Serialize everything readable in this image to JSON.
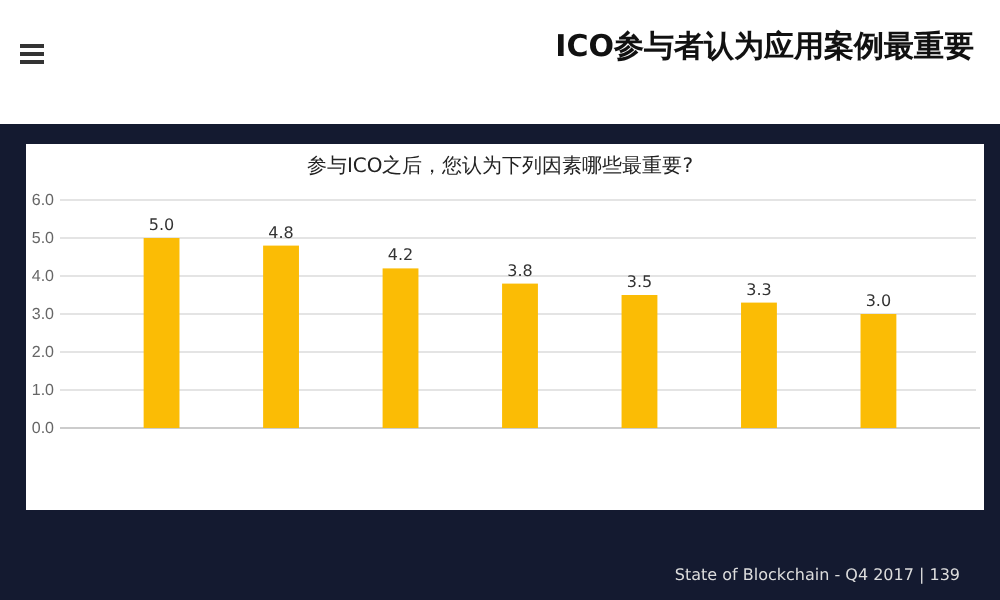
{
  "chart_data": {
    "type": "bar",
    "title": "参与ICO之后，您认为下列因素哪些最重要?",
    "subtitle": "ICO参与者认为应用案例最重要",
    "categories": [
      null,
      null,
      null,
      null,
      null,
      null,
      null
    ],
    "values": [
      5.0,
      4.8,
      4.2,
      3.8,
      3.5,
      3.3,
      3.0
    ],
    "color": "#fbbc05",
    "ylim": [
      0,
      6
    ],
    "yticks": [
      {
        "value": 0,
        "label": "0.0"
      },
      {
        "value": 1,
        "label": "1.0"
      },
      {
        "value": 2,
        "label": "2.0"
      },
      {
        "value": 3,
        "label": "3.0"
      },
      {
        "value": 4,
        "label": "4.0"
      },
      {
        "value": 5,
        "label": "5.0"
      },
      {
        "value": 6,
        "label": "6.0"
      }
    ],
    "value_labels": [
      "5.0",
      "4.8",
      "4.2",
      "3.8",
      "3.5",
      "3.3",
      "3.0"
    ],
    "grid": "y",
    "annotations": [
      "State of Blockchain - Q4 2017  |  139"
    ]
  }
}
